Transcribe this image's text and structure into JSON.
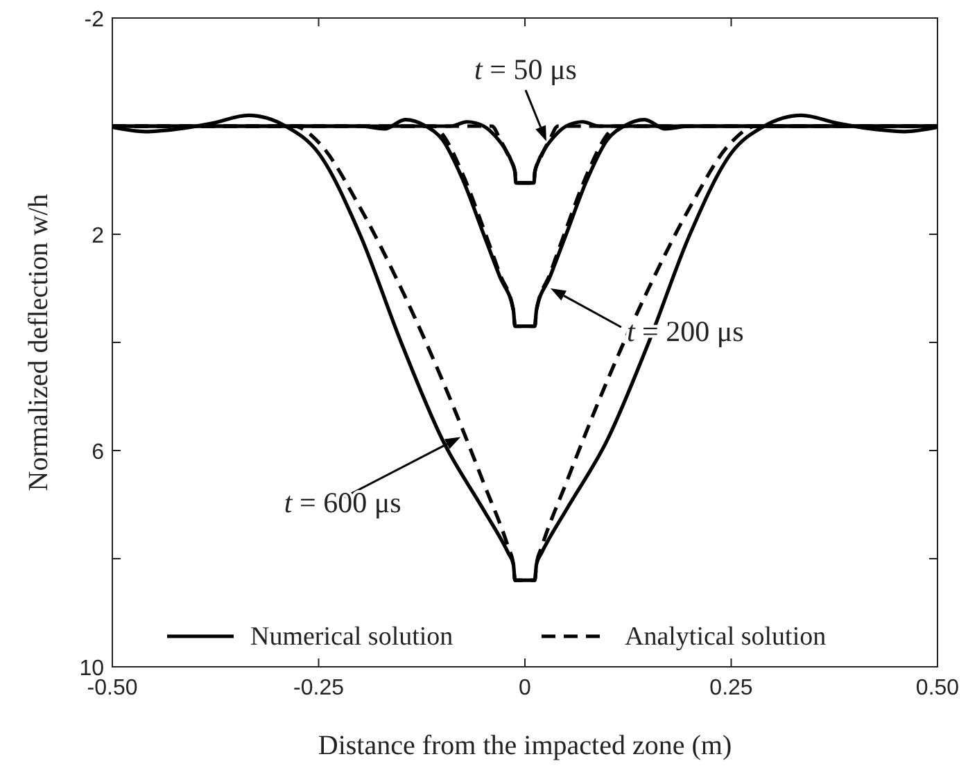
{
  "chart_data": {
    "type": "line",
    "xlabel": "Distance from the impacted zone (m)",
    "ylabel": "Normalized deflection w/h",
    "xlim": [
      -0.5,
      0.5
    ],
    "xticks": [
      {
        "value": -0.5,
        "label": "-0.50"
      },
      {
        "value": -0.25,
        "label": "-0.25"
      },
      0,
      {
        "value": 0.25,
        "label": "0.25"
      },
      {
        "value": 0.5,
        "label": "0.50"
      }
    ],
    "ylim": [
      10,
      -2
    ],
    "yticks": [
      -2,
      {
        "value": 0,
        "label": null
      },
      2,
      {
        "value": 4,
        "label": null
      },
      6,
      {
        "value": 8,
        "label": null
      },
      10
    ],
    "grid": false,
    "legend": "bottom",
    "marker": "none",
    "series": [
      {
        "name": "Numerical solution",
        "color": "#000000",
        "line_style": "solid",
        "x": [
          -0.5,
          -0.09,
          -0.07,
          -0.05,
          -0.035,
          -0.025,
          -0.015,
          -0.012,
          -0.011,
          0.011,
          0.012,
          0.015,
          0.025,
          0.035,
          0.05,
          0.07,
          0.09,
          0.5
        ],
        "values": [
          0,
          0,
          -0.08,
          0,
          0.2,
          0.4,
          0.7,
          0.85,
          1.05,
          1.05,
          0.85,
          0.7,
          0.4,
          0.2,
          0,
          -0.08,
          0,
          0
        ]
      },
      {
        "name": "Analytical solution",
        "color": "#000000",
        "line_style": "dashed",
        "x": [
          -0.5,
          -0.04,
          -0.03,
          -0.02,
          -0.012,
          -0.011,
          0.011,
          0.012,
          0.02,
          0.03,
          0.04,
          0.5
        ],
        "values": [
          0,
          0,
          0.25,
          0.55,
          0.85,
          1.05,
          1.05,
          0.85,
          0.55,
          0.25,
          0,
          0
        ]
      },
      {
        "color": "#000000",
        "line_style": "solid",
        "x": [
          -0.5,
          -0.2,
          -0.17,
          -0.145,
          -0.12,
          -0.1,
          -0.075,
          -0.05,
          -0.03,
          -0.014,
          -0.012,
          0.012,
          0.014,
          0.03,
          0.05,
          0.075,
          0.1,
          0.12,
          0.145,
          0.17,
          0.2,
          0.5
        ],
        "values": [
          0,
          0,
          0.05,
          -0.12,
          0,
          0.25,
          1.0,
          2.0,
          2.8,
          3.4,
          3.7,
          3.7,
          3.4,
          2.8,
          2.0,
          1.0,
          0.25,
          0,
          -0.12,
          0.05,
          0,
          0
        ]
      },
      {
        "color": "#000000",
        "line_style": "dashed",
        "x": [
          -0.5,
          -0.11,
          -0.1,
          -0.075,
          -0.05,
          -0.03,
          -0.014,
          -0.012,
          0.012,
          0.014,
          0.03,
          0.05,
          0.075,
          0.1,
          0.11,
          0.5
        ],
        "values": [
          0,
          0,
          0.15,
          0.9,
          1.9,
          2.75,
          3.4,
          3.7,
          3.7,
          3.4,
          2.75,
          1.9,
          0.9,
          0.15,
          0,
          0
        ]
      },
      {
        "color": "#000000",
        "line_style": "solid",
        "x": [
          -0.5,
          -0.46,
          -0.42,
          -0.38,
          -0.335,
          -0.29,
          -0.25,
          -0.2,
          -0.15,
          -0.1,
          -0.05,
          -0.02,
          -0.014,
          -0.012,
          0.012,
          0.014,
          0.02,
          0.05,
          0.1,
          0.15,
          0.2,
          0.25,
          0.29,
          0.335,
          0.38,
          0.42,
          0.46,
          0.5
        ],
        "values": [
          0.02,
          0.1,
          0.05,
          -0.05,
          -0.2,
          0,
          0.5,
          2.0,
          4.0,
          5.8,
          7.1,
          7.9,
          8.1,
          8.4,
          8.4,
          8.1,
          7.9,
          7.1,
          5.8,
          4.0,
          2.0,
          0.5,
          0,
          -0.2,
          -0.05,
          0.05,
          0.1,
          0.02
        ]
      },
      {
        "color": "#000000",
        "line_style": "dashed",
        "x": [
          -0.5,
          -0.28,
          -0.25,
          -0.2,
          -0.15,
          -0.1,
          -0.05,
          -0.02,
          -0.014,
          -0.012,
          0.012,
          0.014,
          0.02,
          0.05,
          0.1,
          0.15,
          0.2,
          0.25,
          0.28,
          0.5
        ],
        "values": [
          0,
          0,
          0.3,
          1.5,
          3.0,
          4.7,
          6.6,
          7.8,
          8.1,
          8.4,
          8.4,
          8.1,
          7.8,
          6.6,
          4.7,
          3.0,
          1.5,
          0.3,
          0,
          0
        ]
      }
    ],
    "annotations": [
      {
        "text": "t = 50 μs",
        "x": 0.026,
        "y": 0.28
      },
      {
        "text": "t = 200 μs",
        "x": 0.031,
        "y": 3.0
      },
      {
        "text": "t = 600 μs",
        "x": -0.078,
        "y": 5.75
      }
    ]
  }
}
